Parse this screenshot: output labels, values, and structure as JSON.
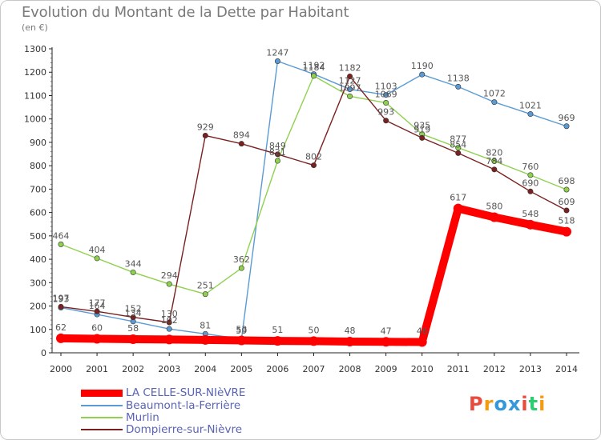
{
  "chart_data": {
    "type": "line",
    "title": "Evolution du Montant de la Dette par Habitant",
    "subtitle": "(en €)",
    "x": [
      "2000",
      "2001",
      "2002",
      "2003",
      "2004",
      "2005",
      "2006",
      "2007",
      "2008",
      "2009",
      "2010",
      "2011",
      "2012",
      "2013",
      "2014"
    ],
    "ylim": [
      0,
      1300
    ],
    "yticks": [
      0,
      100,
      200,
      300,
      400,
      500,
      600,
      700,
      800,
      900,
      1000,
      1100,
      1200,
      1300
    ],
    "grid": false,
    "series": [
      {
        "name": "LA CELLE-SUR-NIèVRE",
        "color": "#ff0000",
        "values": [
          62,
          60,
          58,
          57,
          55,
          53,
          51,
          50,
          48,
          47,
          46,
          617,
          580,
          548,
          518
        ],
        "labels": [
          "62",
          "60",
          "58",
          "",
          "",
          "53",
          "51",
          "50",
          "48",
          "47",
          "46",
          "617",
          "580",
          "548",
          "518"
        ]
      },
      {
        "name": "Beaumont-la-Ferrière",
        "color": "#5b9bd5",
        "values": [
          193,
          164,
          134,
          102,
          81,
          59,
          1247,
          1192,
          1127,
          1103,
          1190,
          1138,
          1072,
          1021,
          969
        ],
        "labels": [
          "193",
          "164",
          "134",
          "102",
          "81",
          "59",
          "1247",
          "1192",
          "1127",
          "1103",
          "1190",
          "1138",
          "1072",
          "1021",
          "969"
        ]
      },
      {
        "name": "Murlin",
        "color": "#8fd14f",
        "values": [
          464,
          404,
          344,
          294,
          251,
          362,
          821,
          1184,
          1097,
          1069,
          935,
          877,
          820,
          760,
          698
        ],
        "labels": [
          "464",
          "404",
          "344",
          "294",
          "251",
          "362",
          "821",
          "1184",
          "1097",
          "1069",
          "935",
          "877",
          "820",
          "760",
          "698"
        ]
      },
      {
        "name": "Dompierre-sur-Nièvre",
        "color": "#7b2020",
        "values": [
          197,
          177,
          152,
          130,
          929,
          894,
          849,
          802,
          1182,
          993,
          919,
          854,
          784,
          690,
          609
        ],
        "labels": [
          "197",
          "177",
          "152",
          "130",
          "929",
          "894",
          "849",
          "802",
          "1182",
          "993",
          "919",
          "854",
          "784",
          "690",
          "609"
        ]
      }
    ]
  },
  "legend": {
    "items": [
      {
        "label": "LA CELLE-SUR-NIèVRE",
        "color": "#ff0000"
      },
      {
        "label": "Beaumont-la-Ferrière",
        "color": "#5b9bd5"
      },
      {
        "label": "Murlin",
        "color": "#8fd14f"
      },
      {
        "label": "Dompierre-sur-Nièvre",
        "color": "#7b2020"
      }
    ]
  },
  "logo": {
    "letters": [
      "P",
      "r",
      "o",
      "x",
      "i",
      "t",
      "i"
    ],
    "colors": [
      "#e84c3d",
      "#f39c12",
      "#3498db",
      "#3498db",
      "#e84c3d",
      "#2ecc71",
      "#f39c12"
    ]
  }
}
